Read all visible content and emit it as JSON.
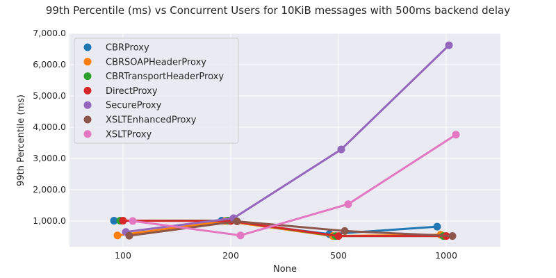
{
  "chart_data": {
    "type": "line",
    "title": "99th Percentile (ms) vs Concurrent Users for 10KiB messages with 500ms backend delay",
    "xlabel": "None",
    "ylabel": "99th Percentile (ms)",
    "categories": [
      "100",
      "200",
      "500",
      "1000"
    ],
    "ylim": [
      0,
      7000
    ],
    "yticks": [
      "1,000.0",
      "2,000.0",
      "3,000.0",
      "4,000.0",
      "5,000.0",
      "6,000.0",
      "7,000.0"
    ],
    "grid": true,
    "legend_position": "top-left",
    "series": [
      {
        "name": "CBRProxy",
        "color": "#1f77b4",
        "values": [
          1010,
          1010,
          580,
          820
        ]
      },
      {
        "name": "CBRSOAPHeaderProxy",
        "color": "#ff7f0e",
        "values": [
          540,
          1000,
          520,
          560
        ]
      },
      {
        "name": "CBRTransportHeaderProxy",
        "color": "#2ca02c",
        "values": [
          1010,
          1010,
          520,
          520
        ]
      },
      {
        "name": "DirectProxy",
        "color": "#d62728",
        "values": [
          1010,
          1000,
          520,
          520
        ]
      },
      {
        "name": "SecureProxy",
        "color": "#9467bd",
        "values": [
          650,
          1090,
          3290,
          6620
        ]
      },
      {
        "name": "XSLTEnhancedProxy",
        "color": "#8c564b",
        "values": [
          530,
          990,
          680,
          520
        ]
      },
      {
        "name": "XSLTProxy",
        "color": "#e377c2",
        "values": [
          1000,
          540,
          1540,
          3760
        ]
      }
    ]
  }
}
